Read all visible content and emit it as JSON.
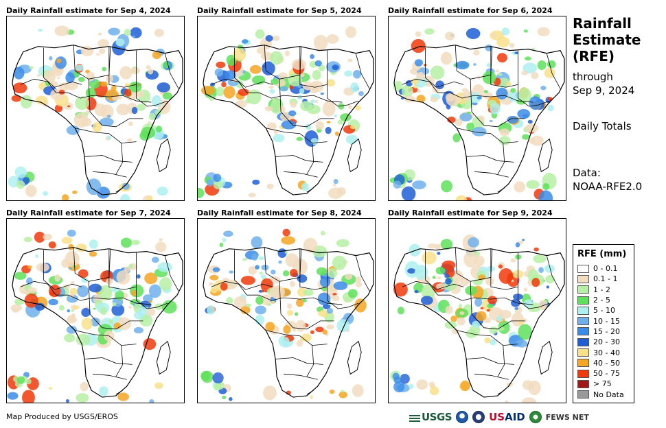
{
  "panels": [
    {
      "title": "Daily Rainfall estimate for Sep 4, 2024"
    },
    {
      "title": "Daily Rainfall estimate for Sep 5, 2024"
    },
    {
      "title": "Daily Rainfall estimate for Sep 6, 2024"
    },
    {
      "title": "Daily Rainfall estimate for Sep 7, 2024"
    },
    {
      "title": "Daily Rainfall estimate for Sep 8, 2024"
    },
    {
      "title": "Daily Rainfall estimate for Sep 9, 2024"
    }
  ],
  "side": {
    "title_line1": "Rainfall",
    "title_line2": "Estimate",
    "title_line3": "(RFE)",
    "through_line1": "through",
    "through_line2": "Sep 9, 2024",
    "frequency": "Daily Totals",
    "data_line1": "Data:",
    "data_line2": "NOAA-RFE2.0"
  },
  "legend": {
    "title": "RFE (mm)",
    "items": [
      {
        "label": "0 - 0.1",
        "color": "#ffffff"
      },
      {
        "label": "0.1 - 1",
        "color": "#f2dcc0"
      },
      {
        "label": "1 - 2",
        "color": "#b6f0a4"
      },
      {
        "label": "2 - 5",
        "color": "#5fe05a"
      },
      {
        "label": "5 - 10",
        "color": "#aef0f0"
      },
      {
        "label": "10 - 15",
        "color": "#6fb0ec"
      },
      {
        "label": "15 - 20",
        "color": "#3b8ce8"
      },
      {
        "label": "20 - 30",
        "color": "#1f5fd6"
      },
      {
        "label": "30 - 40",
        "color": "#f8e08a"
      },
      {
        "label": "40 - 50",
        "color": "#f5a623"
      },
      {
        "label": "50 - 75",
        "color": "#f03a0c"
      },
      {
        "label": "> 75",
        "color": "#a01818"
      },
      {
        "label": "No Data",
        "color": "#9a9a9a"
      }
    ]
  },
  "footer": {
    "credit": "Map Produced by USGS/EROS",
    "logo_usgs": "USGS",
    "logo_usaid_us": "US",
    "logo_usaid_aid": "AID",
    "logo_fews": "FEWS NET"
  }
}
